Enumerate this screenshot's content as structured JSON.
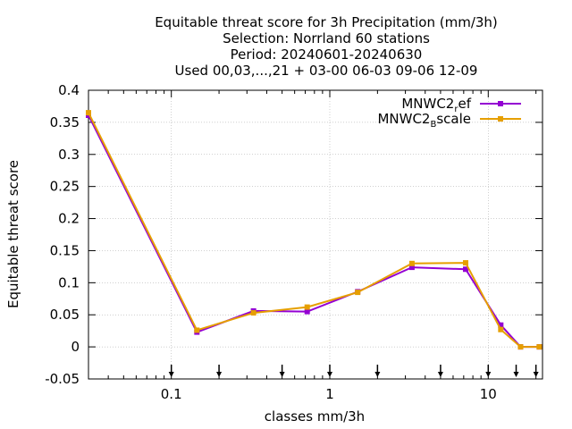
{
  "chart_data": {
    "type": "line",
    "title_lines": [
      "Equitable threat score  for 3h Precipitation (mm/3h)",
      "Selection: Norrland     60 stations",
      "Period: 20240601-20240630",
      "Used 00,03,...,21 + 03-00 06-03 09-06 12-09"
    ],
    "xlabel": "classes mm/3h",
    "ylabel": "Equitable threat score",
    "x_scale": "log",
    "xlim": [
      0.03,
      22
    ],
    "ylim": [
      -0.05,
      0.4
    ],
    "x_ticks": [
      {
        "value": 0.1,
        "label": "0.1"
      },
      {
        "value": 1,
        "label": "1"
      },
      {
        "value": 10,
        "label": "10"
      }
    ],
    "y_ticks": [
      {
        "value": -0.05,
        "label": "-0.05"
      },
      {
        "value": 0,
        "label": "0"
      },
      {
        "value": 0.05,
        "label": "0.05"
      },
      {
        "value": 0.1,
        "label": "0.1"
      },
      {
        "value": 0.15,
        "label": "0.15"
      },
      {
        "value": 0.2,
        "label": "0.2"
      },
      {
        "value": 0.25,
        "label": "0.25"
      },
      {
        "value": 0.3,
        "label": "0.3"
      },
      {
        "value": 0.35,
        "label": "0.35"
      },
      {
        "value": 0.4,
        "label": "0.4"
      }
    ],
    "grid": true,
    "threshold_arrows": [
      0.1,
      0.2,
      0.5,
      1,
      2,
      5,
      10,
      15,
      20
    ],
    "legend_position": "top-right",
    "series": [
      {
        "name": "MNWC2_ref",
        "legend_main": "MNWC2",
        "legend_sub": "r",
        "legend_tail": "ef",
        "color": "#9400d3",
        "x": [
          0.03,
          0.145,
          0.33,
          0.72,
          1.5,
          3.3,
          7.2,
          12,
          16,
          21
        ],
        "y": [
          0.361,
          0.023,
          0.056,
          0.055,
          0.086,
          0.124,
          0.121,
          0.034,
          0.0,
          0.0
        ]
      },
      {
        "name": "MNWC2_Bscale",
        "legend_main": "MNWC2",
        "legend_sub": "B",
        "legend_tail": "scale",
        "color": "#e69f00",
        "x": [
          0.03,
          0.145,
          0.33,
          0.72,
          1.5,
          3.3,
          7.2,
          12,
          16,
          21
        ],
        "y": [
          0.365,
          0.026,
          0.053,
          0.062,
          0.085,
          0.13,
          0.131,
          0.027,
          0.0,
          0.0
        ]
      }
    ]
  }
}
